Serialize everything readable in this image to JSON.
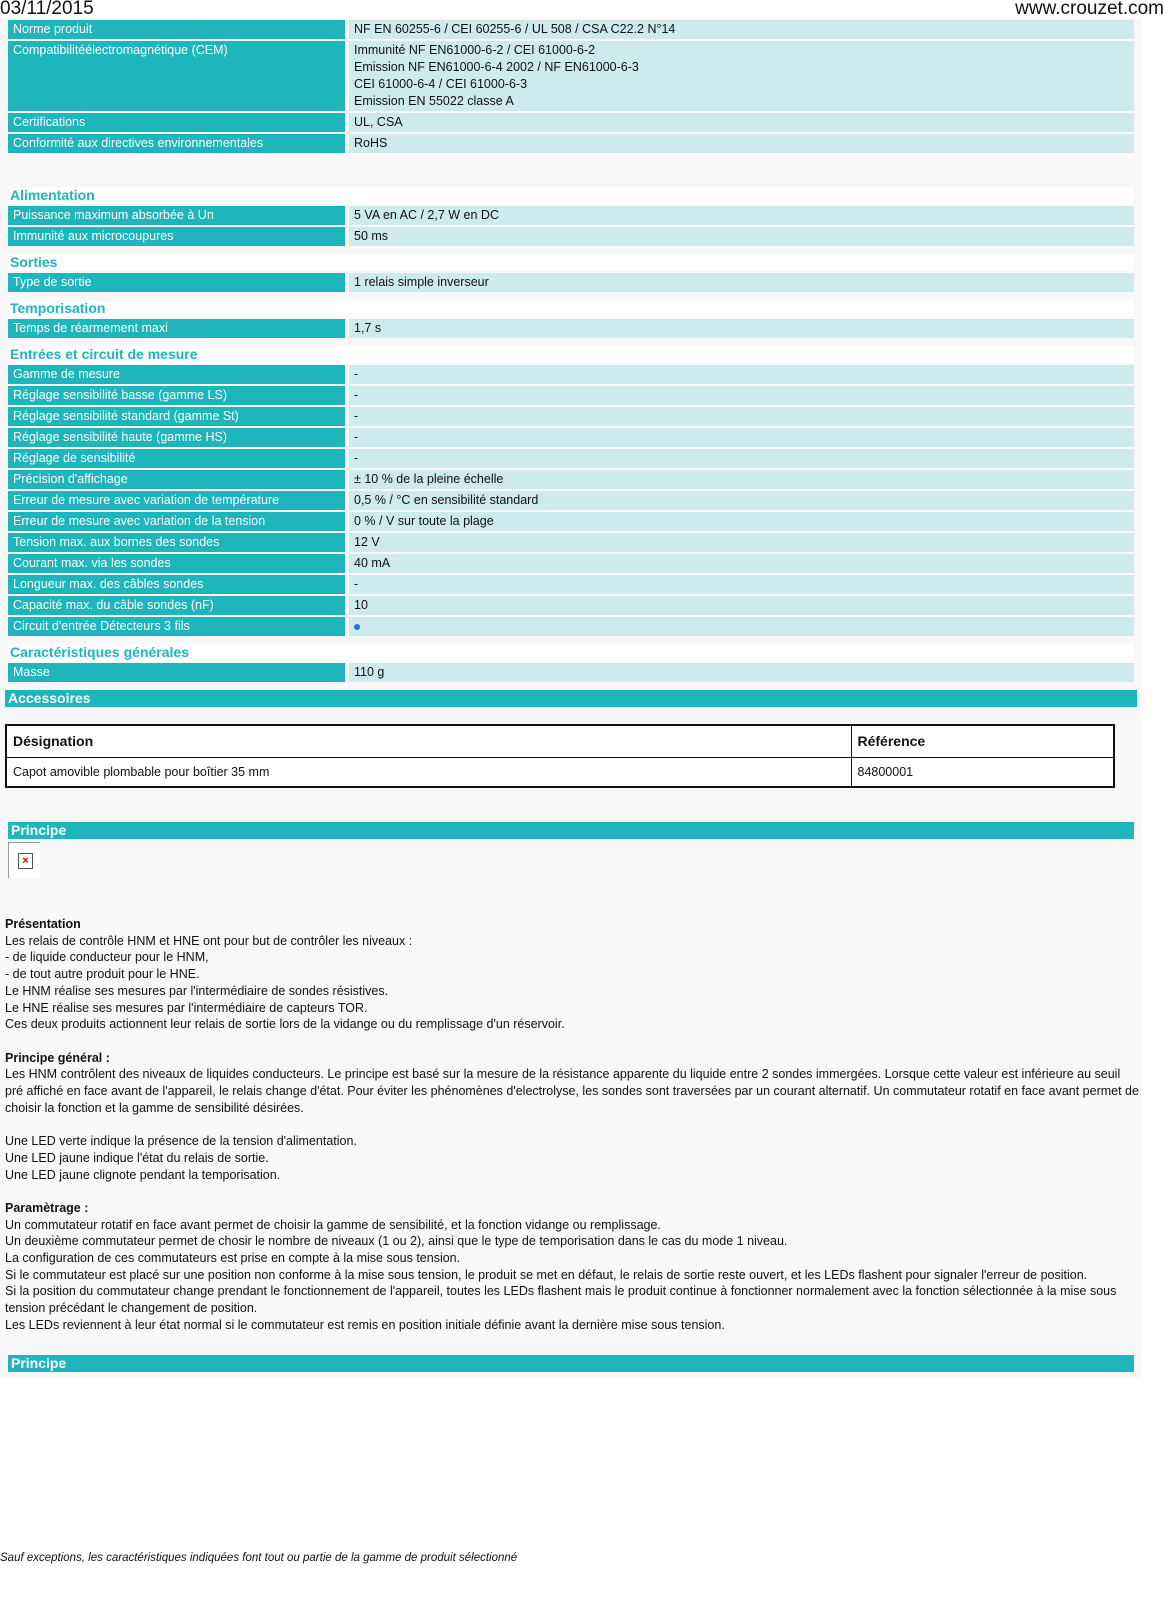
{
  "header": {
    "date": "03/11/2015",
    "site": "www.crouzet.com"
  },
  "top_rows": [
    {
      "label": "Norme produit",
      "value": [
        "NF EN 60255-6 / CEI 60255-6 / UL 508 / CSA C22.2 N°14"
      ]
    },
    {
      "label": "Compatibilitéélectromagnétique (CEM)",
      "value": [
        "Immunité NF EN61000-6-2 / CEI 61000-6-2",
        "Emission NF EN61000-6-4 2002 / NF EN61000-6-3",
        "CEI 61000-6-4 / CEI 61000-6-3",
        "Emission EN 55022 classe A"
      ]
    },
    {
      "label": "Certifications",
      "value": [
        "UL, CSA"
      ]
    },
    {
      "label": "Conformité aux directives environnementales",
      "value": [
        "RoHS"
      ]
    }
  ],
  "sections": [
    {
      "title": "Alimentation",
      "rows": [
        {
          "label": "Puissance maximum absorbée à Un",
          "value": "5 VA en AC / 2,7 W en DC"
        },
        {
          "label": "Immunité aux microcoupures",
          "value": "50 ms"
        }
      ]
    },
    {
      "title": "Sorties",
      "rows": [
        {
          "label": "Type de sortie",
          "value": "1 relais simple inverseur"
        }
      ]
    },
    {
      "title": "Temporisation",
      "rows": [
        {
          "label": "Temps de réarmement maxi",
          "value": "1,7 s"
        }
      ]
    },
    {
      "title": "Entrées et circuit de mesure",
      "rows": [
        {
          "label": "Gamme de mesure",
          "value": "-"
        },
        {
          "label": "Réglage sensibilité basse (gamme LS)",
          "value": "-"
        },
        {
          "label": "Réglage sensibilité standard (gamme St)",
          "value": "-"
        },
        {
          "label": "Réglage sensibilité haute (gamme HS)",
          "value": "-"
        },
        {
          "label": "Réglage de sensibilité",
          "value": "-"
        },
        {
          "label": "Précision d'affichage",
          "value": "± 10 % de la pleine échelle"
        },
        {
          "label": "Erreur de mesure avec variation de température",
          "value": "0,5 % / °C en sensibilité standard"
        },
        {
          "label": "Erreur de mesure avec variation de la tension",
          "value": "0 % / V sur toute la plage"
        },
        {
          "label": "Tension max. aux bornes des sondes",
          "value": "12 V"
        },
        {
          "label": "Courant max. via les sondes",
          "value": "40 mA"
        },
        {
          "label": "Longueur max. des câbles sondes",
          "value": "-"
        },
        {
          "label": "Capacité max. du câble sondes (nF)",
          "value": "10"
        },
        {
          "label": "Circuit d'entrée Détecteurs 3 fils",
          "value": null,
          "icon": "blue-dot-icon"
        }
      ]
    },
    {
      "title": "Caractéristiques générales",
      "rows": [
        {
          "label": "Masse",
          "value": "110 g"
        }
      ]
    }
  ],
  "accessories": {
    "title": "Accessoires",
    "headers": [
      "Désignation",
      "Référence"
    ],
    "rows": [
      [
        "Capot amovible plombable pour boîtier 35 mm",
        "84800001"
      ]
    ]
  },
  "principe": {
    "title": "Principe",
    "title2": "Principe",
    "presentation_title": "Présentation",
    "presentation": [
      "Les relais de contrôle HNM et HNE ont pour but de contrôler les niveaux :",
      "- de liquide conducteur pour le HNM,",
      "- de tout autre produit pour le HNE.",
      "Le HNM réalise ses mesures par l'intermédiaire de sondes résistives.",
      "Le HNE réalise ses mesures par l'intermédiaire de capteurs TOR.",
      "Ces deux produits actionnent leur relais de sortie lors de la vidange ou du remplissage d'un réservoir."
    ],
    "general_title": "Principe général :",
    "general": "Les HNM contrôlent des niveaux de liquides conducteurs. Le principe est basé sur la mesure de la résistance apparente du liquide entre 2 sondes immergées. Lorsque cette valeur est inférieure au seuil pré affiché en face avant de l'appareil, le relais change d'état. Pour éviter les phénomènes d'electrolyse, les sondes sont traversées par un courant alternatif. Un commutateur rotatif en face avant permet de choisir la fonction et la gamme de sensibilité désirées.",
    "leds": [
      "Une LED verte indique la présence de la tension d'alimentation.",
      "Une LED jaune indique l'état du relais de sortie.",
      "Une LED jaune clignote pendant la temporisation."
    ],
    "param_title": "Paramètrage :",
    "param": [
      "Un commutateur rotatif en face avant permet de choisir la gamme de sensibilité, et la fonction vidange ou remplissage.",
      "Un deuxième commutateur permet de chosir le nombre de niveaux (1 ou 2), ainsi que le type de temporisation dans le cas du mode 1 niveau.",
      "La configuration de ces commutateurs est prise en compte à la mise sous tension.",
      "Si le commutateur est placé sur une position non conforme à la mise sous tension, le produit se met en défaut, le relais de sortie reste ouvert, et les LEDs flashent pour signaler l'erreur de position.",
      "Si la position du commutateur change prendant le fonctionnement de l'appareil, toutes les LEDs flashent mais le produit continue à fonctionner normalement avec la fonction sélectionnée à la mise sous tension précédant le changement de position.",
      "Les LEDs reviennent à leur état normal si le commutateur est remis en position initiale définie avant la dernière mise sous tension."
    ]
  },
  "footer": "Sauf exceptions, les caractéristiques indiquées font tout ou partie de la gamme de produit sélectionné"
}
